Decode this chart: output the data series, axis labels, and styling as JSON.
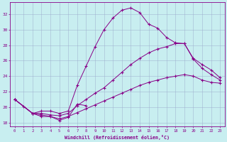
{
  "xlabel": "Windchill (Refroidissement éolien,°C)",
  "bg_color": "#c8eef0",
  "line_color": "#880088",
  "grid_color": "#99aacc",
  "xlim": [
    -0.5,
    23.5
  ],
  "ylim": [
    17.5,
    33.5
  ],
  "xticks": [
    0,
    1,
    2,
    3,
    4,
    5,
    6,
    7,
    8,
    9,
    10,
    11,
    12,
    13,
    14,
    15,
    16,
    17,
    18,
    19,
    20,
    21,
    22,
    23
  ],
  "yticks": [
    18,
    20,
    22,
    24,
    26,
    28,
    30,
    32
  ],
  "series1_x": [
    0,
    1,
    2,
    3,
    4,
    5,
    6,
    7,
    8
  ],
  "series1_y": [
    21.0,
    20.1,
    19.2,
    18.8,
    18.8,
    18.3,
    18.7,
    20.4,
    20.2
  ],
  "series2_x": [
    0,
    2,
    3,
    4,
    5,
    6,
    7,
    8,
    9,
    10,
    11,
    12,
    13,
    14,
    15,
    16,
    17,
    18,
    19,
    20,
    21,
    22,
    23
  ],
  "series2_y": [
    21.0,
    19.2,
    19.5,
    19.5,
    19.2,
    19.5,
    22.8,
    25.3,
    27.8,
    30.0,
    31.5,
    32.5,
    32.8,
    32.2,
    30.7,
    30.2,
    29.0,
    28.3,
    28.2,
    26.2,
    25.0,
    24.2,
    23.5
  ],
  "series3_x": [
    0,
    2,
    3,
    4,
    5,
    6,
    7,
    8,
    9,
    10,
    11,
    12,
    13,
    14,
    15,
    16,
    17,
    18,
    19,
    20,
    21,
    22,
    23
  ],
  "series3_y": [
    21.0,
    19.2,
    19.2,
    19.0,
    18.9,
    19.2,
    20.2,
    21.0,
    21.8,
    22.5,
    23.5,
    24.5,
    25.5,
    26.3,
    27.0,
    27.5,
    27.8,
    28.2,
    28.2,
    26.3,
    25.5,
    24.8,
    23.8
  ],
  "series4_x": [
    0,
    2,
    3,
    4,
    5,
    6,
    7,
    8,
    9,
    10,
    11,
    12,
    13,
    14,
    15,
    16,
    17,
    18,
    19,
    20,
    21,
    22,
    23
  ],
  "series4_y": [
    21.0,
    19.2,
    19.0,
    18.8,
    18.5,
    18.8,
    19.3,
    19.8,
    20.3,
    20.8,
    21.3,
    21.8,
    22.3,
    22.8,
    23.2,
    23.5,
    23.8,
    24.0,
    24.2,
    24.0,
    23.5,
    23.2,
    23.1
  ]
}
